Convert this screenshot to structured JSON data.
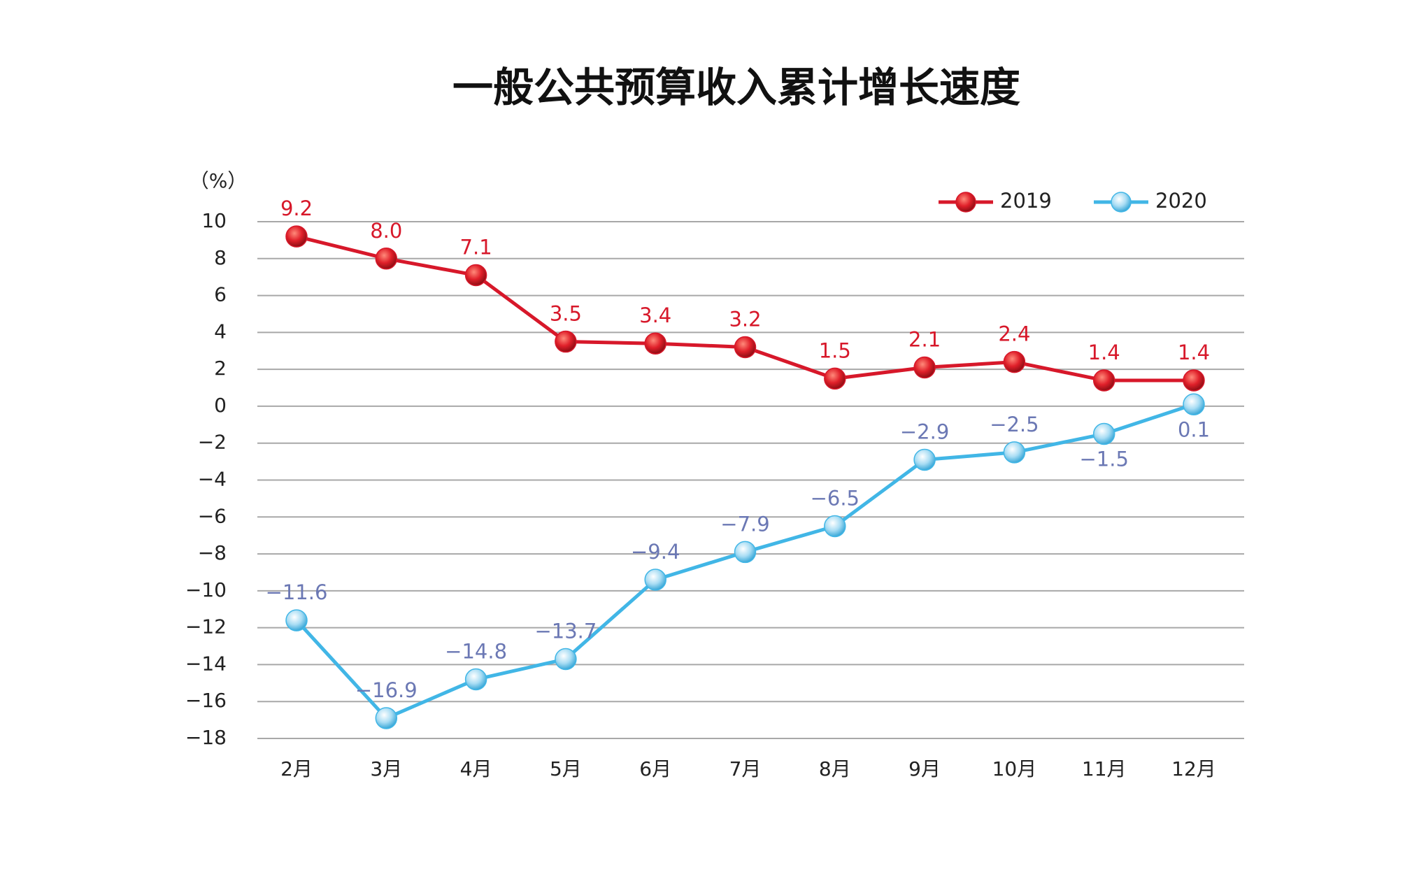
{
  "chart_data": {
    "type": "line",
    "title": "一般公共预算收入累计增长速度",
    "y_label": "（%）",
    "categories": [
      "2月",
      "3月",
      "4月",
      "5月",
      "6月",
      "7月",
      "8月",
      "9月",
      "10月",
      "11月",
      "12月"
    ],
    "series": [
      {
        "name": "2019",
        "color": "#d7182a",
        "label_color": "#d7182a",
        "values": [
          9.2,
          8.0,
          7.1,
          3.5,
          3.4,
          3.2,
          1.5,
          2.1,
          2.4,
          1.4,
          1.4
        ],
        "value_labels": [
          "9.2",
          "8.0",
          "7.1",
          "3.5",
          "3.4",
          "3.2",
          "1.5",
          "2.1",
          "2.4",
          "1.4",
          "1.4"
        ]
      },
      {
        "name": "2020",
        "color": "#41b6e6",
        "label_color": "#6b78b4",
        "values": [
          -11.6,
          -16.9,
          -14.8,
          -13.7,
          -9.4,
          -7.9,
          -6.5,
          -2.9,
          -2.5,
          -1.5,
          0.1
        ],
        "value_labels": [
          "−11.6",
          "−16.9",
          "−14.8",
          "−13.7",
          "−9.4",
          "−7.9",
          "−6.5",
          "−2.9",
          "−2.5",
          "−1.5",
          "0.1"
        ]
      }
    ],
    "ylim": [
      -18,
      10
    ],
    "yticks": [
      10,
      8,
      6,
      4,
      2,
      0,
      {
        "value": -2,
        "label": "−2"
      },
      {
        "value": -4,
        "label": "−4"
      },
      {
        "value": -6,
        "label": "−6"
      },
      {
        "value": -8,
        "label": "−8"
      },
      {
        "value": -10,
        "label": "−10"
      },
      {
        "value": -12,
        "label": "−12"
      },
      {
        "value": -14,
        "label": "−14"
      },
      {
        "value": -16,
        "label": "−16"
      },
      {
        "value": -18,
        "label": "−18"
      }
    ],
    "grid": true,
    "legend": "top-right"
  }
}
